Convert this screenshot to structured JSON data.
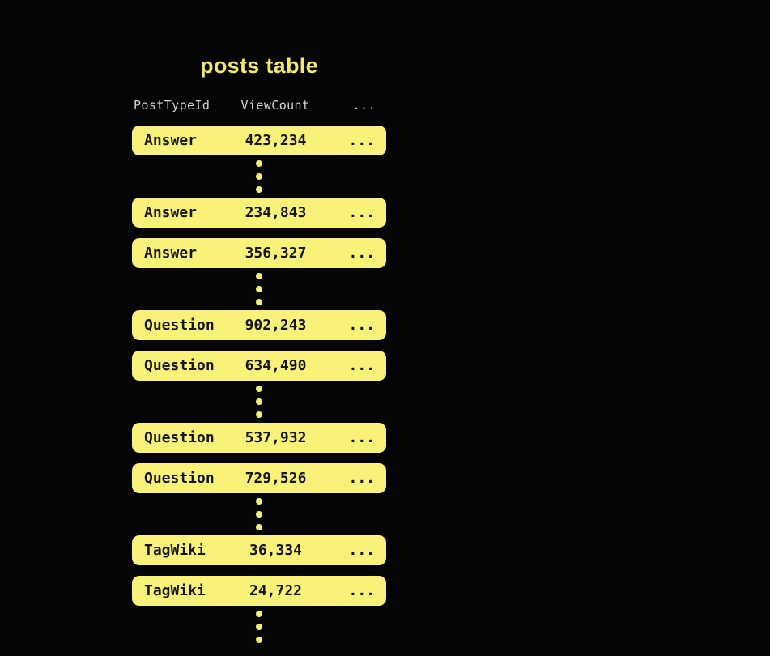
{
  "title": "posts table",
  "columns": [
    "PostTypeId",
    "ViewCount",
    "..."
  ],
  "items": [
    {
      "kind": "row",
      "post_type": "Answer",
      "view_count": "423,234",
      "more": "..."
    },
    {
      "kind": "ellipsis"
    },
    {
      "kind": "row",
      "post_type": "Answer",
      "view_count": "234,843",
      "more": "..."
    },
    {
      "kind": "row",
      "post_type": "Answer",
      "view_count": "356,327",
      "more": "..."
    },
    {
      "kind": "ellipsis"
    },
    {
      "kind": "row",
      "post_type": "Question",
      "view_count": "902,243",
      "more": "..."
    },
    {
      "kind": "row",
      "post_type": "Question",
      "view_count": "634,490",
      "more": "..."
    },
    {
      "kind": "ellipsis"
    },
    {
      "kind": "row",
      "post_type": "Question",
      "view_count": "537,932",
      "more": "..."
    },
    {
      "kind": "row",
      "post_type": "Question",
      "view_count": "729,526",
      "more": "..."
    },
    {
      "kind": "ellipsis"
    },
    {
      "kind": "row",
      "post_type": "TagWiki",
      "view_count": "36,334",
      "more": "..."
    },
    {
      "kind": "row",
      "post_type": "TagWiki",
      "view_count": "24,722",
      "more": "..."
    },
    {
      "kind": "ellipsis"
    }
  ],
  "colors": {
    "background": "#040404",
    "row_fill": "#f8f27b",
    "row_text": "#161616",
    "title": "#f0e96e",
    "header_text": "#d4d4d4",
    "dot": "#f6ef76"
  }
}
